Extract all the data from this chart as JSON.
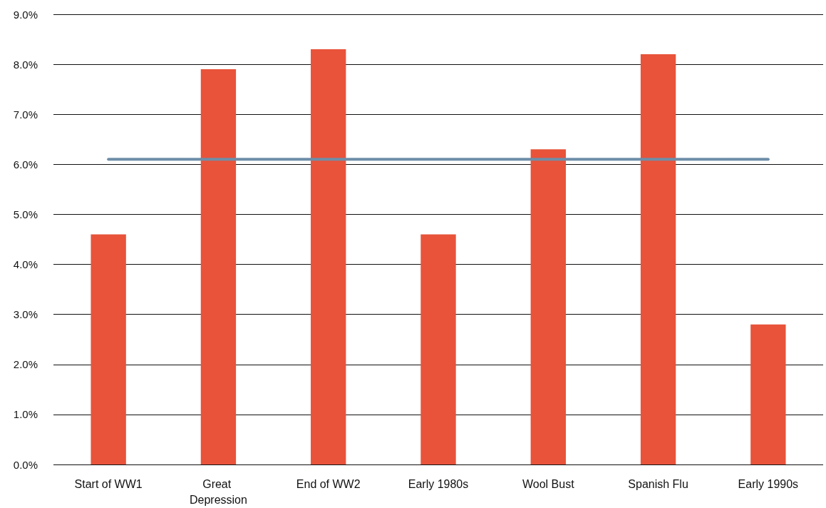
{
  "chart_data": {
    "type": "bar",
    "categories": [
      "Start of WW1",
      "Great Depression",
      "End of WW2",
      "Early 1980s",
      "Wool Bust",
      "Spanish Flu",
      "Early 1990s"
    ],
    "series": [
      {
        "color": "#e8533a",
        "values": [
          4.6,
          7.9,
          8.3,
          4.6,
          6.3,
          8.2,
          2.8
        ]
      },
      {
        "type": "line",
        "color": "#6e8ea8",
        "values": [
          6.1,
          6.1,
          6.1,
          6.1,
          6.1,
          6.1,
          6.1
        ]
      }
    ],
    "ylim": [
      0,
      9
    ],
    "yticks": [
      {
        "value": 0,
        "label": "0.0%"
      },
      {
        "value": 1,
        "label": "1.0%"
      },
      {
        "value": 2,
        "label": "2.0%"
      },
      {
        "value": 3,
        "label": "3.0%"
      },
      {
        "value": 4,
        "label": "4.0%"
      },
      {
        "value": 5,
        "label": "5.0%"
      },
      {
        "value": 6,
        "label": "6.0%"
      },
      {
        "value": 7,
        "label": "7.0%"
      },
      {
        "value": 8,
        "label": "8.0%"
      },
      {
        "value": 9,
        "label": "9.0%"
      }
    ],
    "grid": "y",
    "marker": "none"
  }
}
